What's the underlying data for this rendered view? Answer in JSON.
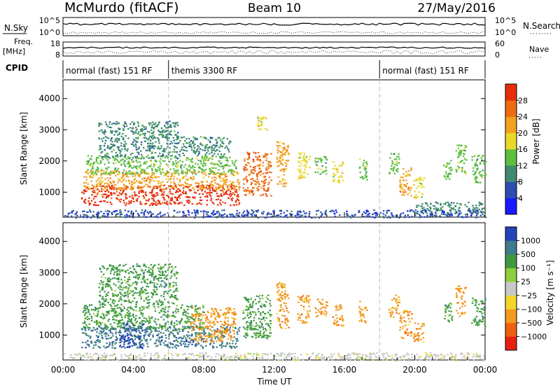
{
  "header": {
    "title": "McMurdo (fitACF)",
    "beam": "Beam 10",
    "date": "27/May/2016"
  },
  "ancillary": {
    "nsky_label": "N.Sky",
    "nsky_ticks": [
      "10^5",
      "10^0"
    ],
    "nsearch_label": "N.Search",
    "freq_label_1": "Freq.",
    "freq_label_2": "[MHz]",
    "freq_ticks": [
      "18",
      "8"
    ],
    "nave_ticks": [
      "60",
      "0"
    ],
    "nave_label": "Nave",
    "cpid_label": "CPID",
    "cpid_segments": [
      {
        "label": "normal (fast) 151 RF",
        "start_hour": 0,
        "end_hour": 6
      },
      {
        "label": "themis 3300 RF",
        "start_hour": 6,
        "end_hour": 18
      },
      {
        "label": "normal (fast) 151 RF",
        "start_hour": 18,
        "end_hour": 24
      }
    ]
  },
  "chart_data": [
    {
      "type": "heatmap",
      "panel": "power",
      "xlabel": "",
      "ylabel": "Slant Range [km]",
      "xlim": [
        0,
        24
      ],
      "ylim": [
        200,
        4600
      ],
      "yticks": [
        1000,
        2000,
        3000,
        4000
      ],
      "colorbar": {
        "label": "Power [dB]",
        "ticks": [
          "4",
          "8",
          "12",
          "16",
          "20",
          "24",
          "28"
        ],
        "levels": [
          0,
          4,
          8,
          12,
          16,
          20,
          24,
          28,
          32
        ],
        "colors": [
          "#1a1aff",
          "#2b4fb0",
          "#3f8a70",
          "#5bbf3f",
          "#e8d82a",
          "#f2a21e",
          "#ee6b14",
          "#e52e0c"
        ]
      },
      "blobs": [
        {
          "t0": 1.0,
          "t1": 10.0,
          "r0": 600,
          "r1": 1250,
          "level": 7
        },
        {
          "t0": 1.1,
          "t1": 10.0,
          "r0": 1100,
          "r1": 1700,
          "level": 5
        },
        {
          "t0": 1.3,
          "t1": 9.8,
          "r0": 1600,
          "r1": 2200,
          "level": 3
        },
        {
          "t0": 2.0,
          "t1": 6.5,
          "r0": 2100,
          "r1": 3300,
          "level": 2
        },
        {
          "t0": 6.5,
          "t1": 9.5,
          "r0": 2200,
          "r1": 2800,
          "level": 2
        },
        {
          "t0": 10.2,
          "t1": 11.8,
          "r0": 900,
          "r1": 2300,
          "level": 6
        },
        {
          "t0": 11.0,
          "t1": 11.6,
          "r0": 3000,
          "r1": 3500,
          "level": 4
        },
        {
          "t0": 12.1,
          "t1": 12.8,
          "r0": 1200,
          "r1": 2700,
          "level": 5
        },
        {
          "t0": 13.3,
          "t1": 14.0,
          "r0": 1400,
          "r1": 2300,
          "level": 4
        },
        {
          "t0": 14.3,
          "t1": 15.0,
          "r0": 1600,
          "r1": 2200,
          "level": 3
        },
        {
          "t0": 15.3,
          "t1": 15.9,
          "r0": 1300,
          "r1": 2000,
          "level": 4
        },
        {
          "t0": 16.8,
          "t1": 17.3,
          "r0": 1400,
          "r1": 2100,
          "level": 3
        },
        {
          "t0": 18.5,
          "t1": 19.1,
          "r0": 1600,
          "r1": 2300,
          "level": 3
        },
        {
          "t0": 19.1,
          "t1": 19.8,
          "r0": 900,
          "r1": 1800,
          "level": 5
        },
        {
          "t0": 19.9,
          "t1": 20.5,
          "r0": 800,
          "r1": 1500,
          "level": 4
        },
        {
          "t0": 21.6,
          "t1": 22.1,
          "r0": 1400,
          "r1": 2100,
          "level": 3
        },
        {
          "t0": 22.3,
          "t1": 22.9,
          "r0": 1600,
          "r1": 2600,
          "level": 3
        },
        {
          "t0": 23.2,
          "t1": 24.0,
          "r0": 1300,
          "r1": 2200,
          "level": 3
        },
        {
          "t0": 20.0,
          "t1": 24.0,
          "r0": 300,
          "r1": 700,
          "level": 2
        },
        {
          "t0": 0.0,
          "t1": 24.0,
          "r0": 200,
          "r1": 450,
          "level": 1
        }
      ]
    },
    {
      "type": "heatmap",
      "panel": "velocity",
      "xlabel": "Time UT",
      "ylabel": "Slant Range [km]",
      "xlim": [
        0,
        24
      ],
      "ylim": [
        200,
        4600
      ],
      "yticks": [
        1000,
        2000,
        3000,
        4000
      ],
      "xticks": [
        "00:00",
        "04:00",
        "08:00",
        "12:00",
        "16:00",
        "20:00",
        "00:00"
      ],
      "colorbar": {
        "label": "Velocity [m s⁻¹]",
        "ticks": [
          "1000",
          "500",
          "100",
          "25",
          "−25",
          "−100",
          "−500",
          "−1000"
        ],
        "levels": [
          1250,
          1000,
          500,
          100,
          25,
          -25,
          -100,
          -500,
          -1000,
          -1250
        ],
        "colors": [
          "#2244b8",
          "#3f7a8f",
          "#3f9a3f",
          "#8ccf3a",
          "#c8c8c8",
          "#f2d62a",
          "#f29a1e",
          "#ee6010",
          "#e82010"
        ]
      },
      "blobs": [
        {
          "t0": 1.0,
          "t1": 10.0,
          "r0": 600,
          "r1": 1300,
          "level": 1
        },
        {
          "t0": 3.2,
          "t1": 4.6,
          "r0": 600,
          "r1": 1400,
          "level": 0
        },
        {
          "t0": 1.1,
          "t1": 8.0,
          "r0": 1200,
          "r1": 2000,
          "level": 2
        },
        {
          "t0": 7.2,
          "t1": 9.8,
          "r0": 800,
          "r1": 1900,
          "level": 6
        },
        {
          "t0": 2.0,
          "t1": 6.5,
          "r0": 2000,
          "r1": 3300,
          "level": 2
        },
        {
          "t0": 10.2,
          "t1": 11.8,
          "r0": 900,
          "r1": 2300,
          "level": 2
        },
        {
          "t0": 12.1,
          "t1": 12.8,
          "r0": 1200,
          "r1": 2700,
          "level": 6
        },
        {
          "t0": 13.3,
          "t1": 14.0,
          "r0": 1400,
          "r1": 2300,
          "level": 6
        },
        {
          "t0": 14.3,
          "t1": 15.0,
          "r0": 1600,
          "r1": 2200,
          "level": 6
        },
        {
          "t0": 15.3,
          "t1": 15.9,
          "r0": 1300,
          "r1": 2000,
          "level": 6
        },
        {
          "t0": 16.8,
          "t1": 17.3,
          "r0": 1400,
          "r1": 2100,
          "level": 6
        },
        {
          "t0": 18.5,
          "t1": 19.1,
          "r0": 1600,
          "r1": 2300,
          "level": 6
        },
        {
          "t0": 19.1,
          "t1": 19.8,
          "r0": 900,
          "r1": 1800,
          "level": 6
        },
        {
          "t0": 19.9,
          "t1": 20.5,
          "r0": 800,
          "r1": 1500,
          "level": 6
        },
        {
          "t0": 21.6,
          "t1": 22.1,
          "r0": 1400,
          "r1": 2100,
          "level": 2
        },
        {
          "t0": 22.3,
          "t1": 22.9,
          "r0": 1600,
          "r1": 2600,
          "level": 6
        },
        {
          "t0": 23.2,
          "t1": 24.0,
          "r0": 1300,
          "r1": 2200,
          "level": 2
        },
        {
          "t0": 0.0,
          "t1": 24.0,
          "r0": 200,
          "r1": 450,
          "level": 4
        }
      ]
    }
  ]
}
